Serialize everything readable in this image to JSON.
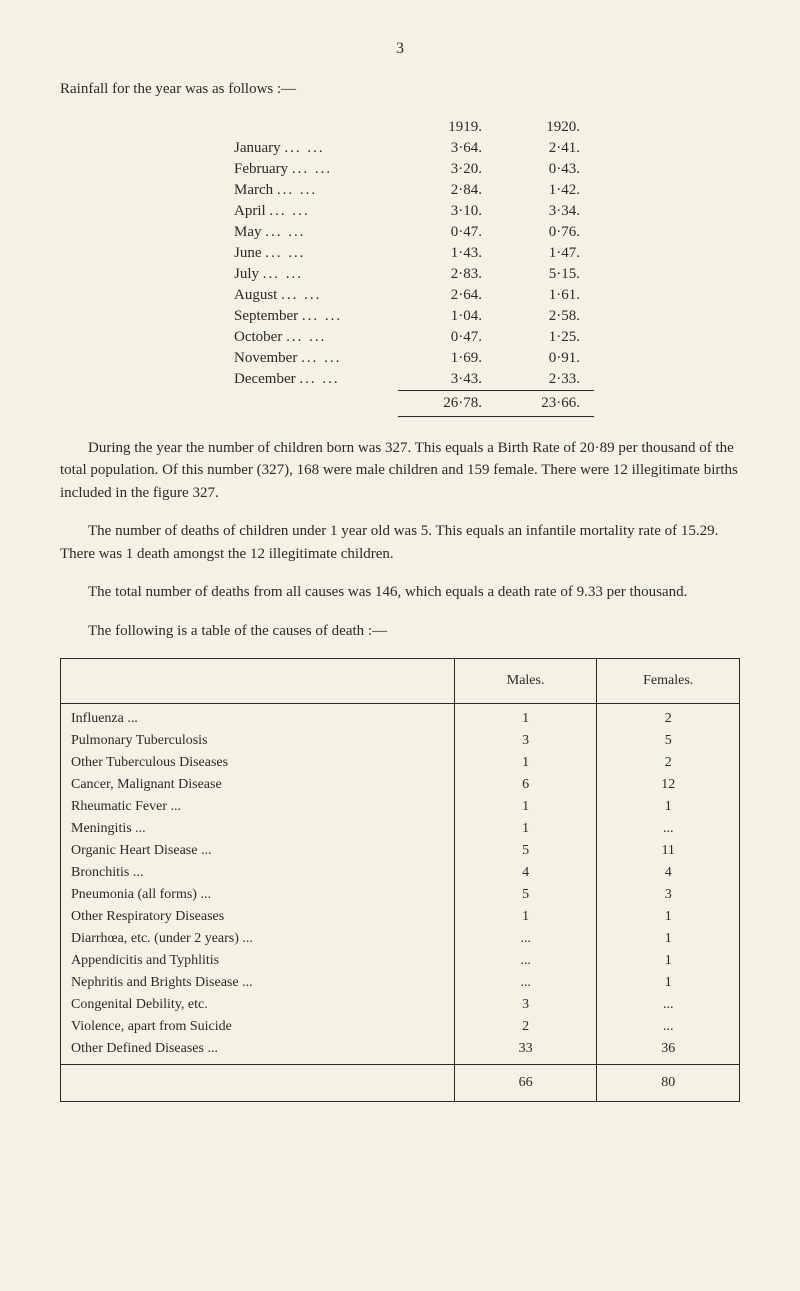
{
  "page_number": "3",
  "intro": "Rainfall for the year was as follows :—",
  "rainfall": {
    "year1": "1919.",
    "year2": "1920.",
    "rows": [
      {
        "month": "January",
        "v1": "3·64.",
        "v2": "2·41."
      },
      {
        "month": "February",
        "v1": "3·20.",
        "v2": "0·43."
      },
      {
        "month": "March",
        "v1": "2·84.",
        "v2": "1·42."
      },
      {
        "month": "April",
        "v1": "3·10.",
        "v2": "3·34."
      },
      {
        "month": "May",
        "v1": "0·47.",
        "v2": "0·76."
      },
      {
        "month": "June",
        "v1": "1·43.",
        "v2": "1·47."
      },
      {
        "month": "July",
        "v1": "2·83.",
        "v2": "5·15."
      },
      {
        "month": "August",
        "v1": "2·64.",
        "v2": "1·61."
      },
      {
        "month": "September",
        "v1": "1·04.",
        "v2": "2·58."
      },
      {
        "month": "October",
        "v1": "0·47.",
        "v2": "1·25."
      },
      {
        "month": "November",
        "v1": "1·69.",
        "v2": "0·91."
      },
      {
        "month": "December",
        "v1": "3·43.",
        "v2": "2·33."
      }
    ],
    "total1": "26·78.",
    "total2": "23·66."
  },
  "para1": "During the year the number of children born was 327. This equals a Birth Rate of 20·89 per thousand of the total population. Of this number (327), 168 were male children and 159 female. There were 12 illegitimate births included in the figure 327.",
  "para2": "The number of deaths of children under 1 year old was 5. This equals an infantile mortality rate of 15.29. There was 1 death amongst the 12 illegitimate children.",
  "para3": "The total number of deaths from all causes was 146, which equals a death rate of 9.33 per thousand.",
  "para4": "The following is a table of the causes of death :—",
  "causes": {
    "header_males": "Males.",
    "header_females": "Females.",
    "rows": [
      {
        "label": "Influenza ...",
        "m": "1",
        "f": "2"
      },
      {
        "label": "Pulmonary Tuberculosis",
        "m": "3",
        "f": "5"
      },
      {
        "label": "Other Tuberculous Diseases",
        "m": "1",
        "f": "2"
      },
      {
        "label": "Cancer, Malignant Disease",
        "m": "6",
        "f": "12"
      },
      {
        "label": "Rheumatic Fever ...",
        "m": "1",
        "f": "1"
      },
      {
        "label": "Meningitis ...",
        "m": "1",
        "f": "..."
      },
      {
        "label": "Organic Heart Disease ...",
        "m": "5",
        "f": "11"
      },
      {
        "label": "Bronchitis ...",
        "m": "4",
        "f": "4"
      },
      {
        "label": "Pneumonia (all forms) ...",
        "m": "5",
        "f": "3"
      },
      {
        "label": "Other Respiratory Diseases",
        "m": "1",
        "f": "1"
      },
      {
        "label": "Diarrhœa, etc. (under 2 years) ...",
        "m": "...",
        "f": "1"
      },
      {
        "label": "Appendicitis and Typhlitis",
        "m": "...",
        "f": "1"
      },
      {
        "label": "Nephritis and Brights Disease ...",
        "m": "...",
        "f": "1"
      },
      {
        "label": "Congenital Debility, etc.",
        "m": "3",
        "f": "..."
      },
      {
        "label": "Violence, apart from Suicide",
        "m": "2",
        "f": "..."
      },
      {
        "label": "Other Defined Diseases ...",
        "m": "33",
        "f": "36"
      }
    ],
    "total_m": "66",
    "total_f": "80"
  }
}
